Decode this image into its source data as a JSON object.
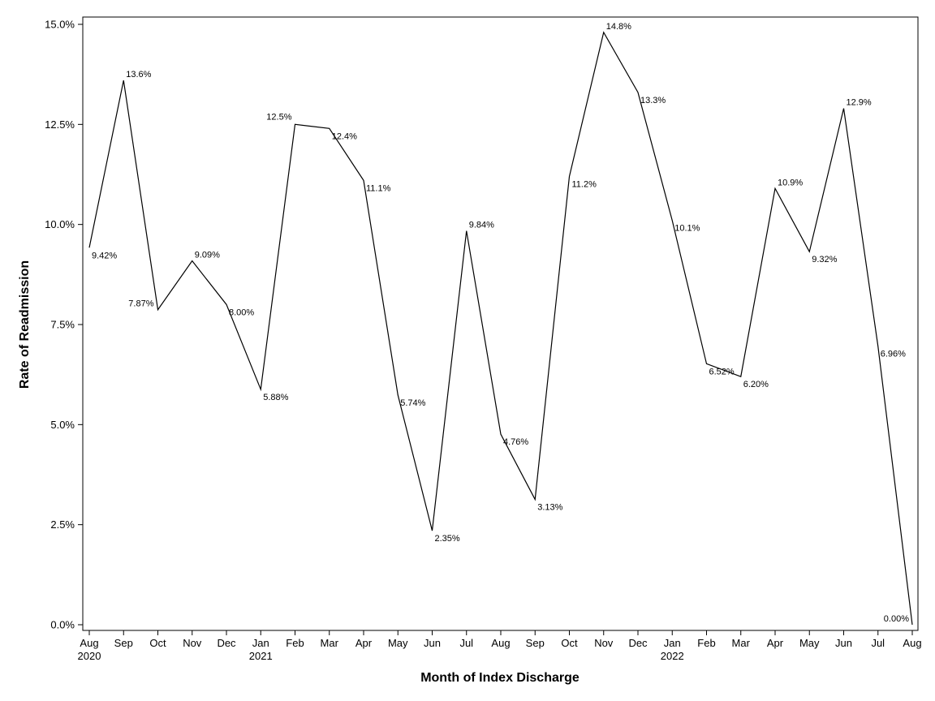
{
  "chart_data": {
    "type": "line",
    "title": "",
    "xlabel": "Month of Index Discharge",
    "ylabel": "Rate of Readmission",
    "ylim": [
      0,
      15
    ],
    "yticks": [
      {
        "value": 0,
        "label": "0.0%"
      },
      {
        "value": 2.5,
        "label": "2.5%"
      },
      {
        "value": 5,
        "label": "5.0%"
      },
      {
        "value": 7.5,
        "label": "7.5%"
      },
      {
        "value": 10,
        "label": "10.0%"
      },
      {
        "value": 12.5,
        "label": "12.5%"
      },
      {
        "value": 15,
        "label": "15.0%"
      }
    ],
    "categories": [
      "Aug",
      "Sep",
      "Oct",
      "Nov",
      "Dec",
      "Jan",
      "Feb",
      "Mar",
      "Apr",
      "May",
      "Jun",
      "Jul",
      "Aug",
      "Sep",
      "Oct",
      "Nov",
      "Dec",
      "Jan",
      "Feb",
      "Mar",
      "Apr",
      "May",
      "Jun",
      "Jul",
      "Aug"
    ],
    "year_labels": [
      {
        "index": 0,
        "label": "2020"
      },
      {
        "index": 5,
        "label": "2021"
      },
      {
        "index": 17,
        "label": "2022"
      }
    ],
    "series": [
      {
        "name": "Rate of Readmission",
        "values": [
          9.42,
          13.6,
          7.87,
          9.09,
          8.0,
          5.88,
          12.5,
          12.4,
          11.1,
          5.74,
          2.35,
          9.84,
          4.76,
          3.13,
          11.2,
          14.8,
          13.3,
          10.1,
          6.52,
          6.2,
          10.9,
          9.32,
          12.9,
          6.96,
          0.0
        ],
        "labels": [
          "9.42%",
          "13.6%",
          "7.87%",
          "9.09%",
          "8.00%",
          "5.88%",
          "12.5%",
          "12.4%",
          "11.1%",
          "5.74%",
          "2.35%",
          "9.84%",
          "4.76%",
          "3.13%",
          "11.2%",
          "14.8%",
          "13.3%",
          "10.1%",
          "6.52%",
          "6.20%",
          "10.9%",
          "9.32%",
          "12.9%",
          "6.96%",
          "0.00%"
        ]
      }
    ],
    "grid": false,
    "legend": "none",
    "colors": {
      "line": "#000000",
      "frame": "#000000",
      "background": "#ffffff"
    }
  }
}
